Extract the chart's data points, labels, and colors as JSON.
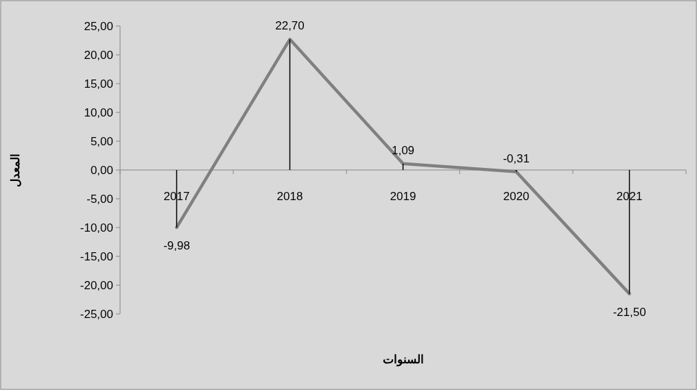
{
  "chart_data": {
    "type": "line",
    "xlabel": "السنوات",
    "ylabel": "المعدل",
    "categories": [
      "2017",
      "2018",
      "2019",
      "2020",
      "2021"
    ],
    "series": [
      {
        "color": "#808080",
        "values": [
          -9.98,
          22.7,
          1.09,
          -0.31,
          -21.5
        ],
        "value_labels": [
          "-9,98",
          "22,70",
          "1,09",
          "-0,31",
          "-21,50"
        ]
      },
      {
        "type": "bar",
        "color": "#000000",
        "values": [
          -9.98,
          22.7,
          1.09,
          -0.31,
          -21.5
        ]
      }
    ],
    "ylim": [
      -25,
      25
    ],
    "yticks": [
      {
        "value": -25,
        "label": "-25,00"
      },
      {
        "value": -20,
        "label": "-20,00"
      },
      {
        "value": -15,
        "label": "-15,00"
      },
      {
        "value": -10,
        "label": "-10,00"
      },
      {
        "value": -5,
        "label": "-5,00"
      },
      {
        "value": 0,
        "label": "0,00"
      },
      {
        "value": 5,
        "label": "5,00"
      },
      {
        "value": 10,
        "label": "10,00"
      },
      {
        "value": 15,
        "label": "15,00"
      },
      {
        "value": 20,
        "label": "20,00"
      },
      {
        "value": 25,
        "label": "25,00"
      }
    ],
    "grid": false,
    "marker": "none",
    "line_style": "solid"
  }
}
